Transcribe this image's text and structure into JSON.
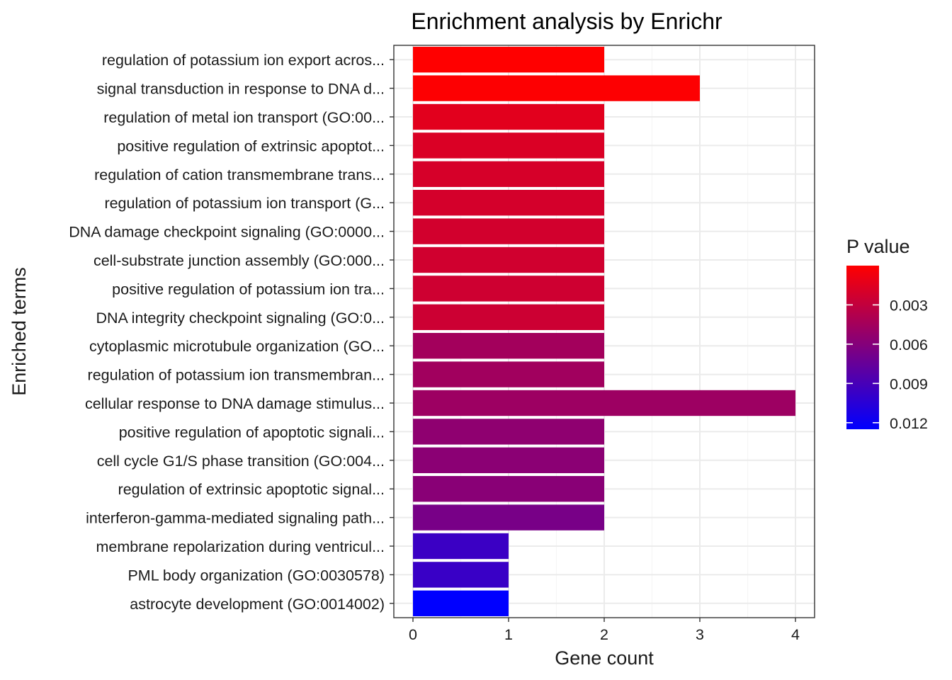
{
  "chart_data": {
    "type": "bar",
    "orientation": "horizontal",
    "title": "Enrichment analysis by Enrichr",
    "xlabel": "Gene count",
    "ylabel": "Enriched terms",
    "xlim": [
      -0.2,
      4.2
    ],
    "xticks": [
      0,
      1,
      2,
      3,
      4
    ],
    "grid": true,
    "categories": [
      "regulation of potassium ion export acros...",
      "signal transduction in response to DNA d...",
      "regulation of metal ion transport (GO:00...",
      "positive regulation of extrinsic apoptot...",
      "regulation of cation transmembrane trans...",
      "regulation of potassium ion transport (G...",
      "DNA damage checkpoint signaling (GO:0000...",
      "cell-substrate junction assembly (GO:000...",
      "positive regulation of potassium ion tra...",
      "DNA integrity checkpoint signaling (GO:0...",
      "cytoplasmic microtubule organization (GO...",
      "regulation of potassium ion transmembran...",
      "cellular response to DNA damage stimulus...",
      "positive regulation of apoptotic signali...",
      "cell cycle G1/S phase transition (GO:004...",
      "regulation of extrinsic apoptotic signal...",
      "interferon-gamma-mediated signaling path...",
      "membrane repolarization during ventricul...",
      "PML body organization (GO:0030578)",
      "astrocyte development (GO:0014002)"
    ],
    "values": [
      2,
      3,
      2,
      2,
      2,
      2,
      2,
      2,
      2,
      2,
      2,
      2,
      4,
      2,
      2,
      2,
      2,
      1,
      1,
      1
    ],
    "p_values": [
      0.0,
      0.0001,
      0.0014,
      0.0018,
      0.002,
      0.0021,
      0.0022,
      0.0023,
      0.0024,
      0.0025,
      0.0045,
      0.0046,
      0.0048,
      0.0055,
      0.0057,
      0.0058,
      0.0066,
      0.0096,
      0.0097,
      0.0125
    ],
    "legend": {
      "title": "P value",
      "position": "right",
      "ticks": [
        "0.003",
        "0.006",
        "0.009",
        "0.012"
      ],
      "tick_values": [
        0.003,
        0.006,
        0.009,
        0.012
      ],
      "range": [
        0.0,
        0.0125
      ],
      "low_color": "#ff0000",
      "high_color": "#0000ff"
    },
    "colors": {
      "panel_border": "#333333",
      "grid_major": "#ebebeb",
      "grid_minor": "#f5f5f5",
      "background": "#ffffff"
    }
  }
}
